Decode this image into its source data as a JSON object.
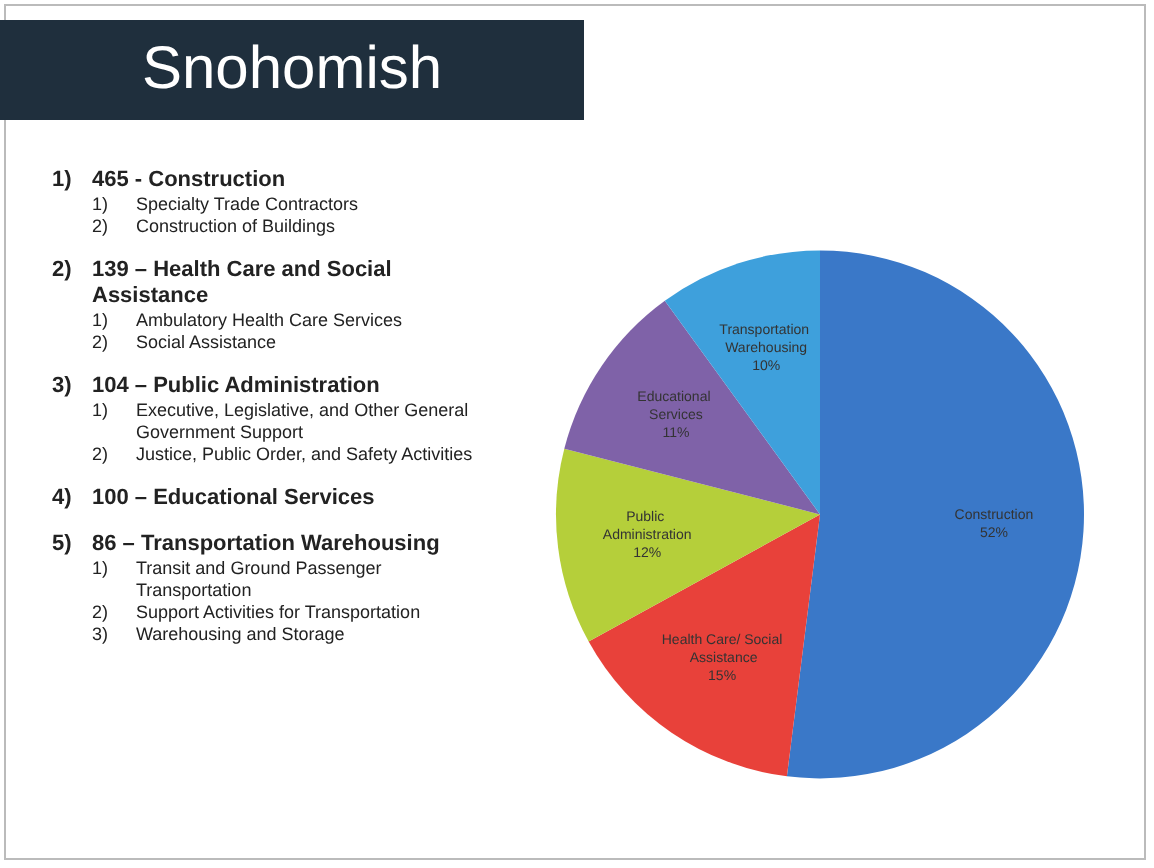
{
  "chart_data": {
    "type": "pie",
    "title": "Snohomish",
    "categories": [
      "Construction",
      "Health Care/ Social Assistance",
      "Public Administration",
      "Educational Services",
      "Transportation Warehousing"
    ],
    "values": [
      52,
      15,
      12,
      11,
      10
    ],
    "colors": [
      "#3a78c8",
      "#e8413a",
      "#b5cf3a",
      "#7f62a8",
      "#3ea0dc"
    ],
    "value_labels": [
      "52%",
      "15%",
      "12%",
      "11%",
      "10%"
    ],
    "annotations": [
      "1)\t465 - Construction\n1)\tSpecialty Trade Contractors\n2)\tConstruction of Buildings",
      "2)\t139 – Health Care and Social Assistance\n1)\tAmbulatory Health Care Services\n2)\tSocial Assistance",
      "3)\t104 – Public Administration\n1)\tExecutive, Legislative, and Other General Government Support\n2)\tJustice, Public Order, and Safety Activities",
      "4)\t100 – Educational Services",
      "5)\t86 – Transportation Warehousing\n1)\tTransit and Ground Passenger Transportation\n2)\tSupport Activities for Transportation\n3)\tWarehousing and Storage"
    ]
  }
}
